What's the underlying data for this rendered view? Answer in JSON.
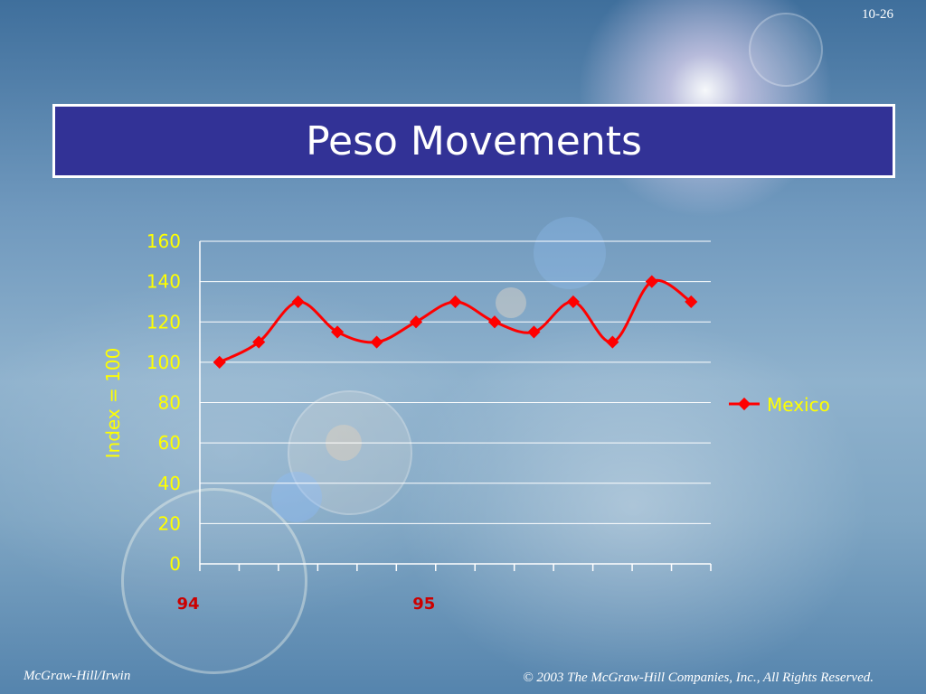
{
  "slide": {
    "number": "10-26",
    "title": "Peso Movements",
    "footer_left": "McGraw-Hill/Irwin",
    "footer_right": "© 2003 The McGraw-Hill Companies, Inc., All Rights Reserved."
  },
  "colors": {
    "title_bg": "#323296",
    "series": "#ff0000",
    "axis_text": "#ffff00",
    "category_text": "#cc0000"
  },
  "chart_data": {
    "type": "line",
    "title": "",
    "ylabel": "Index = 100",
    "xlabel": "",
    "ylim": [
      0,
      160
    ],
    "yticks": [
      0,
      20,
      40,
      60,
      80,
      100,
      120,
      140,
      160
    ],
    "x_labels": [
      {
        "text": "94",
        "index": 0
      },
      {
        "text": "95",
        "index": 6
      }
    ],
    "series": [
      {
        "name": "Mexico",
        "values": [
          100,
          110,
          130,
          115,
          110,
          120,
          130,
          120,
          115,
          130,
          110,
          140,
          130
        ]
      }
    ],
    "grid": true,
    "legend": "right"
  }
}
